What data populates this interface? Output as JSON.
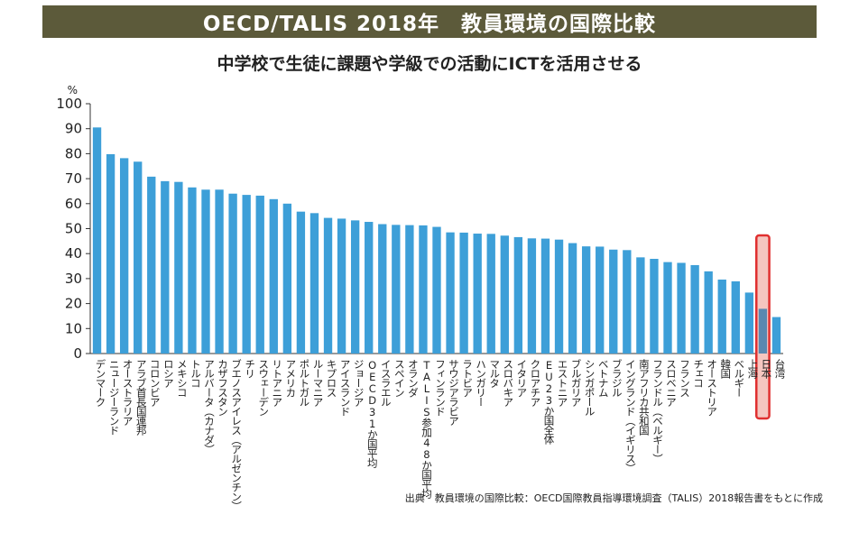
{
  "header": {
    "title": "OECD/TALIS 2018年　教員環境の国際比較"
  },
  "chart_data": {
    "type": "bar",
    "title": "中学校で生徒に課題や学級での活動にICTを活用させる",
    "ylabel": "%",
    "xlabel": "",
    "ylim": [
      0,
      100
    ],
    "yticks": [
      0,
      10,
      20,
      30,
      40,
      50,
      60,
      70,
      80,
      90,
      100
    ],
    "grid": false,
    "bar_color": "#3d9fd8",
    "highlight_color": "#5a88b0",
    "highlight_box_color": "#e03030",
    "highlight_fill": "#f5c6c0",
    "highlight_category": "日本",
    "categories": [
      "デンマーク",
      "ニュージーランド",
      "オーストラリア",
      "アラブ首長国連邦",
      "コロンビア",
      "ロシア",
      "メキシコ",
      "トルコ",
      "アルバータ（カナダ）",
      "カザフスタン",
      "ブエノスアイレス（アルゼンチン）",
      "チリ",
      "スウェーデン",
      "リトアニア",
      "アメリカ",
      "ポルトガル",
      "ルーマニア",
      "キプロス",
      "アイスランド",
      "ジョージア",
      "OECD31か国平均",
      "イスラエル",
      "スペイン",
      "オランダ",
      "TALIS参加48か国平均",
      "フィンランド",
      "サウジアラビア",
      "ラトビア",
      "ハンガリー",
      "マルタ",
      "スロバキア",
      "イタリア",
      "クロアチア",
      "EU23か国全体",
      "エストニア",
      "ブルガリア",
      "シンガポール",
      "ベトナム",
      "ブラジル",
      "イングランド（イギリス）",
      "南アフリカ共和国",
      "フランドル（ベルギー）",
      "スロベニア",
      "フランス",
      "チェコ",
      "オーストリア",
      "韓国",
      "ベルギー",
      "上海",
      "日本",
      "台湾"
    ],
    "values": [
      90.5,
      79.8,
      78.2,
      76.8,
      70.8,
      69.0,
      68.7,
      66.5,
      65.6,
      65.6,
      64.0,
      63.5,
      63.2,
      61.8,
      60.0,
      56.8,
      56.2,
      54.3,
      54.0,
      53.3,
      52.7,
      51.8,
      51.5,
      51.4,
      51.3,
      50.7,
      48.5,
      48.4,
      48.0,
      47.9,
      47.2,
      46.6,
      46.1,
      46.0,
      45.6,
      44.2,
      42.9,
      42.8,
      41.6,
      41.4,
      38.5,
      37.9,
      36.6,
      36.3,
      35.4,
      32.9,
      29.6,
      28.9,
      24.4,
      17.9,
      14.6
    ]
  },
  "footer": {
    "source": "出典　教員環境の国際比較：OECD国際教員指導環境調査（TALIS）2018報告書をもとに作成"
  }
}
